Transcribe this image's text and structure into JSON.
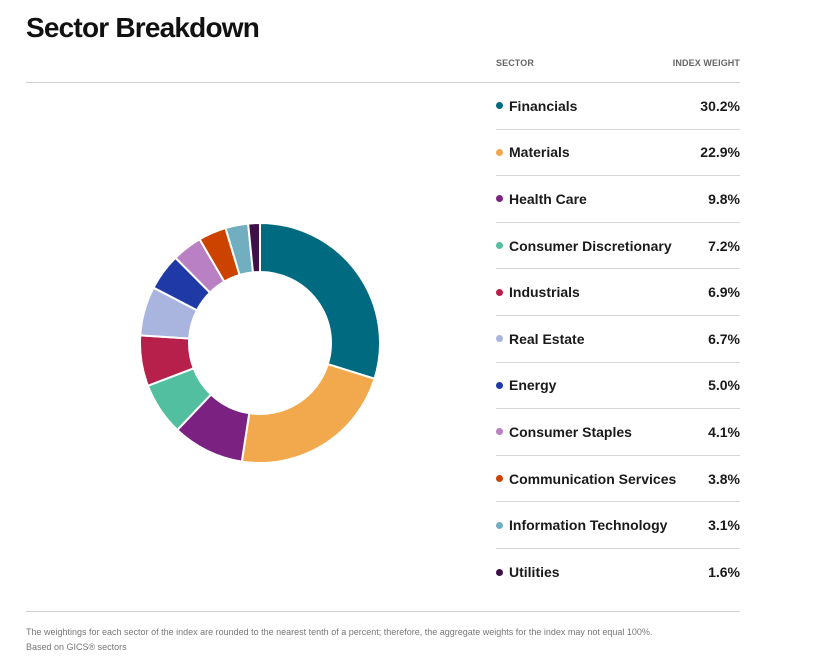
{
  "title": "Sector Breakdown",
  "table": {
    "col_sector": "SECTOR",
    "col_weight": "INDEX WEIGHT"
  },
  "footnote": {
    "line1": "The weightings for each sector of the index are rounded to the nearest tenth of a percent; therefore, the aggregate weights for the index may not equal 100%.",
    "line2": "Based on GICS® sectors"
  },
  "chart_data": {
    "type": "pie",
    "donut": true,
    "categories": [
      "Financials",
      "Materials",
      "Health Care",
      "Consumer Discretionary",
      "Industrials",
      "Real Estate",
      "Energy",
      "Consumer Staples",
      "Communication Services",
      "Information Technology",
      "Utilities"
    ],
    "values": [
      30.2,
      22.9,
      9.8,
      7.2,
      6.9,
      6.7,
      5.0,
      4.1,
      3.8,
      3.1,
      1.6
    ],
    "labels": [
      "30.2%",
      "22.9%",
      "9.8%",
      "7.2%",
      "6.9%",
      "6.7%",
      "5.0%",
      "4.1%",
      "3.8%",
      "3.1%",
      "1.6%"
    ],
    "colors": [
      "#006b80",
      "#f2a84c",
      "#7a2182",
      "#52bfa0",
      "#b8204c",
      "#a9b4df",
      "#1f3aa6",
      "#b980c3",
      "#cc4300",
      "#70aec0",
      "#3d1048"
    ],
    "legend_placement": "right"
  }
}
